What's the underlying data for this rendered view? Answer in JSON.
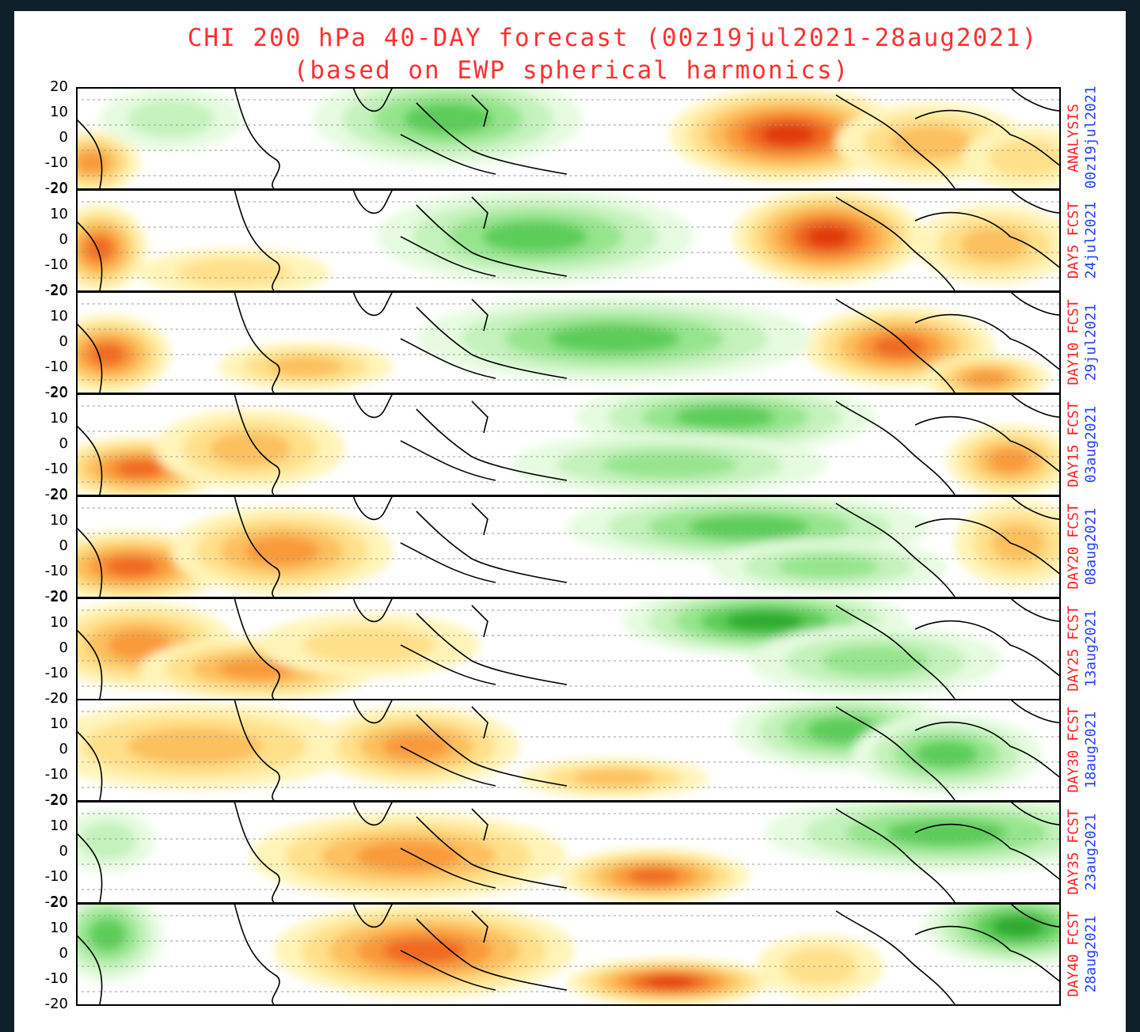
{
  "title_line1": "CHI 200 hPa 40-DAY forecast (00z19jul2021-28aug2021)",
  "title_line2": "(based on EWP spherical harmonics)",
  "y_ticks": [
    "20",
    "10",
    "0",
    "-10",
    "-20"
  ],
  "colors": {
    "title": "#ff3030",
    "panel_label": "#ff2020",
    "panel_date": "#2040ff",
    "positive_scale": [
      "#fff4b8",
      "#ffe08a",
      "#fcc05e",
      "#f99a3a",
      "#f06a20",
      "#e03a10"
    ],
    "negative_scale": [
      "#e6fbe0",
      "#c4f2bc",
      "#96e58e",
      "#5ccd58",
      "#2faa2f"
    ]
  },
  "panels": [
    {
      "label": "ANALYSIS",
      "date": "00z19jul2021"
    },
    {
      "label": "DAY5 FCST",
      "date": "24jul2021"
    },
    {
      "label": "DAY10 FCST",
      "date": "29jul2021"
    },
    {
      "label": "DAY15 FCST",
      "date": "03aug2021"
    },
    {
      "label": "DAY20 FCST",
      "date": "08aug2021"
    },
    {
      "label": "DAY25 FCST",
      "date": "13aug2021"
    },
    {
      "label": "DAY30 FCST",
      "date": "18aug2021"
    },
    {
      "label": "DAY35 FCST",
      "date": "23aug2021"
    },
    {
      "label": "DAY40 FCST",
      "date": "28aug2021"
    }
  ]
}
